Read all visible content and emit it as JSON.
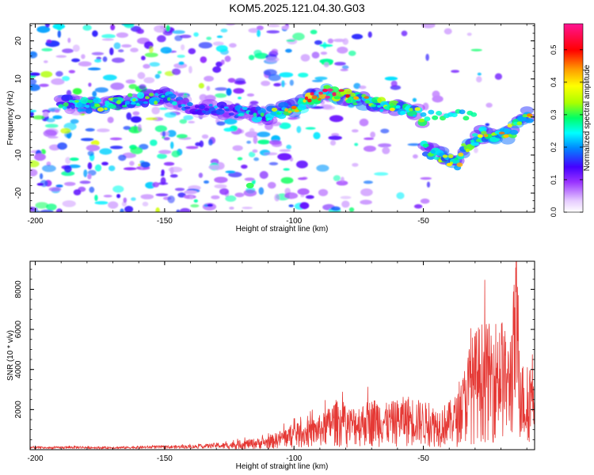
{
  "title": "KOM5.2025.121.04.30.G03",
  "chart_data": [
    {
      "type": "heatmap",
      "xlabel": "Height of straight line (km)",
      "ylabel": "Frequency (Hz)",
      "xlim": [
        -202,
        -7
      ],
      "ylim": [
        -25,
        24.5
      ],
      "xticks": [
        -200,
        -150,
        -100,
        -50
      ],
      "yticks": [
        -20,
        -10,
        0,
        10,
        20
      ],
      "grid": false,
      "colorbar": {
        "label": "Normalized spectral amplitude",
        "range": [
          0,
          0.58
        ],
        "ticks": [
          "0.0",
          "0.1",
          "0.2",
          "0.3",
          "0.4",
          "0.5"
        ],
        "colors": [
          "#ffffff",
          "#e6ccff",
          "#9933ff",
          "#4400ff",
          "#0088ff",
          "#00ffff",
          "#00ff66",
          "#aaff00",
          "#ffff00",
          "#ff9900",
          "#ff0000",
          "#ff1493"
        ]
      },
      "ridge": [
        {
          "x": -185,
          "f": 3.5,
          "a": 0.3
        },
        {
          "x": -178,
          "f": 3.0,
          "a": 0.35
        },
        {
          "x": -150,
          "f": 5.5,
          "a": 0.28
        },
        {
          "x": -140,
          "f": 2.5,
          "a": 0.2
        },
        {
          "x": -125,
          "f": 1.5,
          "a": 0.22
        },
        {
          "x": -110,
          "f": 0.5,
          "a": 0.3
        },
        {
          "x": -100,
          "f": 2.5,
          "a": 0.45
        },
        {
          "x": -88,
          "f": 6.5,
          "a": 0.55
        },
        {
          "x": -75,
          "f": 4.5,
          "a": 0.42
        },
        {
          "x": -62,
          "f": 2.5,
          "a": 0.4
        },
        {
          "x": -52,
          "f": 1.5,
          "a": 0.35
        },
        {
          "x": -45,
          "f": -10.0,
          "a": 0.32
        },
        {
          "x": -40,
          "f": -12.5,
          "a": 0.4
        },
        {
          "x": -28,
          "f": -4.5,
          "a": 0.38
        },
        {
          "x": -18,
          "f": -5.0,
          "a": 0.42
        },
        {
          "x": -10,
          "f": 0.5,
          "a": 0.38
        }
      ]
    },
    {
      "type": "line",
      "xlabel": "Height of straight line (km)",
      "ylabel": "SNR (10 * v/v)",
      "xlim": [
        -202,
        -7
      ],
      "ylim": [
        0,
        9400
      ],
      "xticks": [
        -200,
        -150,
        -100,
        -50
      ],
      "yticks": [
        2000,
        4000,
        6000,
        8000
      ],
      "grid": false,
      "color": "#e53935",
      "series": [
        {
          "x": [
            -202,
            -195,
            -185,
            -175,
            -165,
            -155,
            -145,
            -135,
            -125,
            -118,
            -110,
            -104,
            -100,
            -96,
            -92,
            -88,
            -84,
            -80,
            -76,
            -72,
            -68,
            -64,
            -60,
            -56,
            -52,
            -48,
            -44,
            -40,
            -36,
            -32,
            -28,
            -24,
            -20,
            -17,
            -14,
            -12,
            -10,
            -8,
            -7
          ],
          "y": [
            150,
            120,
            160,
            130,
            140,
            170,
            180,
            220,
            350,
            480,
            600,
            1000,
            1200,
            1300,
            1500,
            1800,
            2400,
            2000,
            2100,
            2300,
            2500,
            2200,
            2400,
            2600,
            2400,
            2200,
            2000,
            2300,
            2800,
            5200,
            6100,
            6000,
            6500,
            5000,
            9400,
            4500,
            3000,
            5300,
            4800
          ]
        }
      ]
    }
  ]
}
